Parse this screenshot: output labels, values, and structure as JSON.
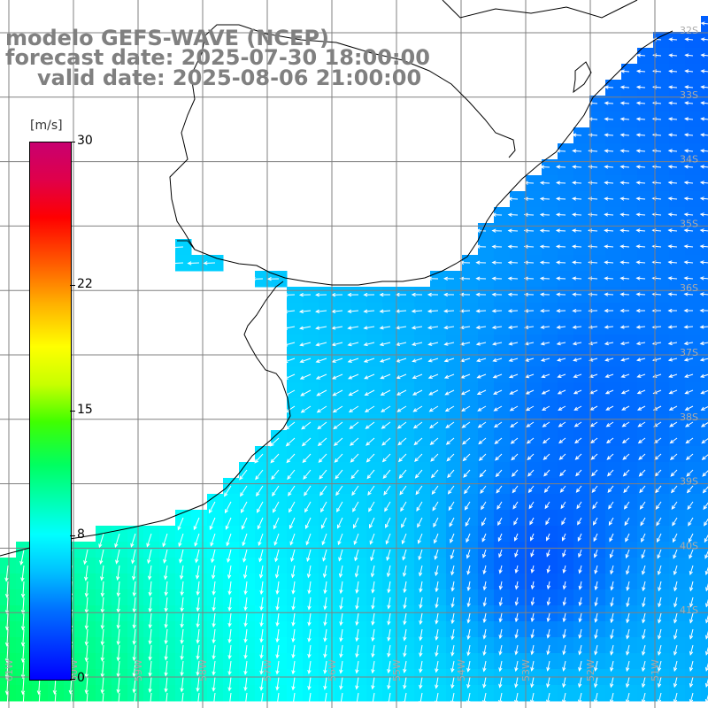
{
  "title": {
    "model": "modelo GEFS-WAVE (NCEP)",
    "forecast": "forecast date: 2025-07-30 18:00:00",
    "valid": "valid date: 2025-08-06 21:00:00"
  },
  "colorbar": {
    "unit": "[m/s]",
    "range": [
      0,
      30
    ],
    "ticks": [
      {
        "label": "30",
        "value": 30
      },
      {
        "label": "22",
        "value": 22
      },
      {
        "label": "15",
        "value": 15
      },
      {
        "label": "8",
        "value": 8
      },
      {
        "label": "0",
        "value": 0
      }
    ]
  },
  "map": {
    "lat_labels": [
      "32S",
      "33S",
      "34S",
      "35S",
      "36S",
      "37S",
      "38S",
      "39S",
      "40S",
      "41S"
    ],
    "lon_labels": [
      "61W",
      "60W",
      "59W",
      "58W",
      "57W",
      "56W",
      "55W",
      "54W",
      "53W",
      "52W",
      "51W"
    ],
    "land_color": "#ffffff",
    "vector_color": "#ffffff",
    "grid_color": "#808080",
    "wind_field": "synthesized"
  }
}
